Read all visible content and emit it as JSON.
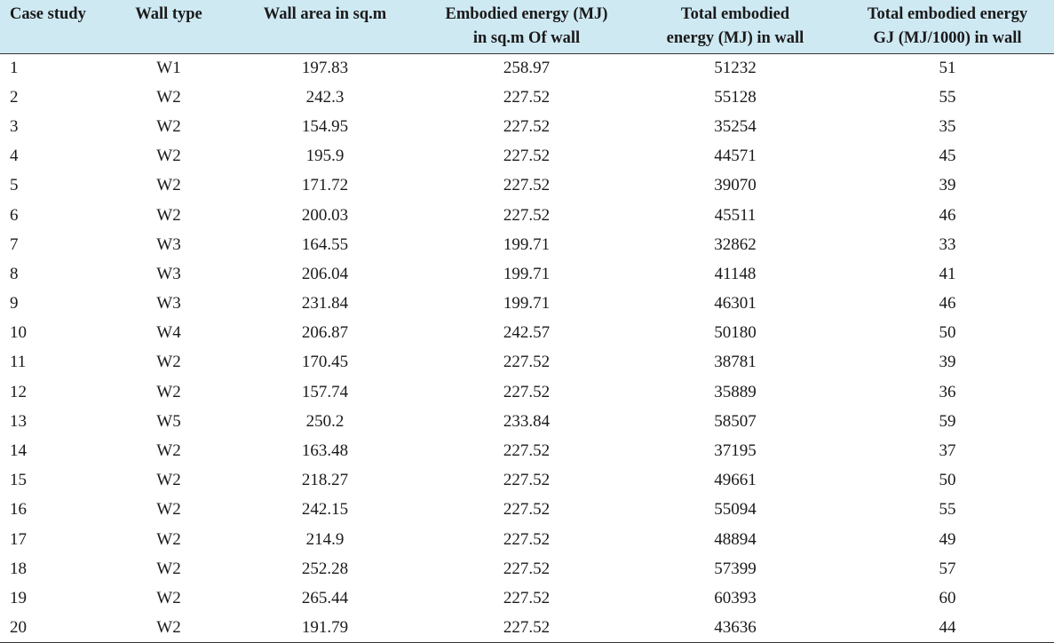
{
  "table": {
    "headers": [
      [
        "Case study",
        ""
      ],
      [
        "Wall type",
        ""
      ],
      [
        "Wall area in sq.m",
        ""
      ],
      [
        "Embodied energy (MJ)",
        "in sq.m Of wall"
      ],
      [
        "Total embodied",
        "energy (MJ) in wall"
      ],
      [
        "Total embodied energy",
        "GJ (MJ/1000) in wall"
      ]
    ],
    "rows": [
      [
        "1",
        "W1",
        "197.83",
        "258.97",
        "51232",
        "51"
      ],
      [
        "2",
        "W2",
        "242.3",
        "227.52",
        "55128",
        "55"
      ],
      [
        "3",
        "W2",
        "154.95",
        "227.52",
        "35254",
        "35"
      ],
      [
        "4",
        "W2",
        "195.9",
        "227.52",
        "44571",
        "45"
      ],
      [
        "5",
        "W2",
        "171.72",
        "227.52",
        "39070",
        "39"
      ],
      [
        "6",
        "W2",
        "200.03",
        "227.52",
        "45511",
        "46"
      ],
      [
        "7",
        "W3",
        "164.55",
        "199.71",
        "32862",
        "33"
      ],
      [
        "8",
        "W3",
        "206.04",
        "199.71",
        "41148",
        "41"
      ],
      [
        "9",
        "W3",
        "231.84",
        "199.71",
        "46301",
        "46"
      ],
      [
        "10",
        "W4",
        "206.87",
        "242.57",
        "50180",
        "50"
      ],
      [
        "11",
        "W2",
        "170.45",
        "227.52",
        "38781",
        "39"
      ],
      [
        "12",
        "W2",
        "157.74",
        "227.52",
        "35889",
        "36"
      ],
      [
        "13",
        "W5",
        "250.2",
        "233.84",
        "58507",
        "59"
      ],
      [
        "14",
        "W2",
        "163.48",
        "227.52",
        "37195",
        "37"
      ],
      [
        "15",
        "W2",
        "218.27",
        "227.52",
        "49661",
        "50"
      ],
      [
        "16",
        "W2",
        "242.15",
        "227.52",
        "55094",
        "55"
      ],
      [
        "17",
        "W2",
        "214.9",
        "227.52",
        "48894",
        "49"
      ],
      [
        "18",
        "W2",
        "252.28",
        "227.52",
        "57399",
        "57"
      ],
      [
        "19",
        "W2",
        "265.44",
        "227.52",
        "60393",
        "60"
      ],
      [
        "20",
        "W2",
        "191.79",
        "227.52",
        "43636",
        "44"
      ]
    ]
  }
}
